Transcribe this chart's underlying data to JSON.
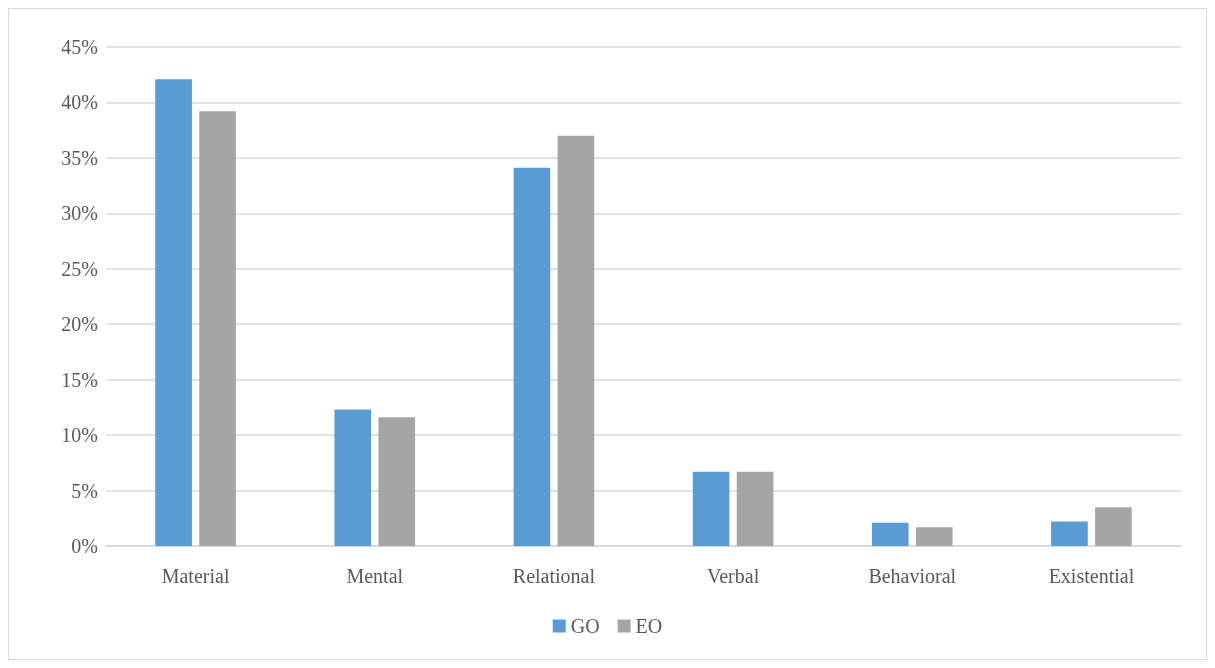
{
  "chart_data": {
    "type": "bar",
    "categories": [
      "Material",
      "Mental",
      "Relational",
      "Verbal",
      "Behavioral",
      "Existential"
    ],
    "series": [
      {
        "name": "GO",
        "color": "#5b9bd5",
        "values": [
          42.1,
          12.3,
          34.1,
          6.7,
          2.1,
          2.2
        ]
      },
      {
        "name": "EO",
        "color": "#a5a5a5",
        "values": [
          39.2,
          11.6,
          37.0,
          6.7,
          1.7,
          3.5
        ]
      }
    ],
    "ylim": [
      0,
      45
    ],
    "yticks": [
      {
        "value": 0,
        "label": "0%"
      },
      {
        "value": 5,
        "label": "5%"
      },
      {
        "value": 10,
        "label": "10%"
      },
      {
        "value": 15,
        "label": "15%"
      },
      {
        "value": 20,
        "label": "20%"
      },
      {
        "value": 25,
        "label": "25%"
      },
      {
        "value": 30,
        "label": "30%"
      },
      {
        "value": 35,
        "label": "35%"
      },
      {
        "value": 40,
        "label": "40%"
      },
      {
        "value": 45,
        "label": "45%"
      }
    ],
    "grid": "y",
    "legend": "bottom"
  }
}
